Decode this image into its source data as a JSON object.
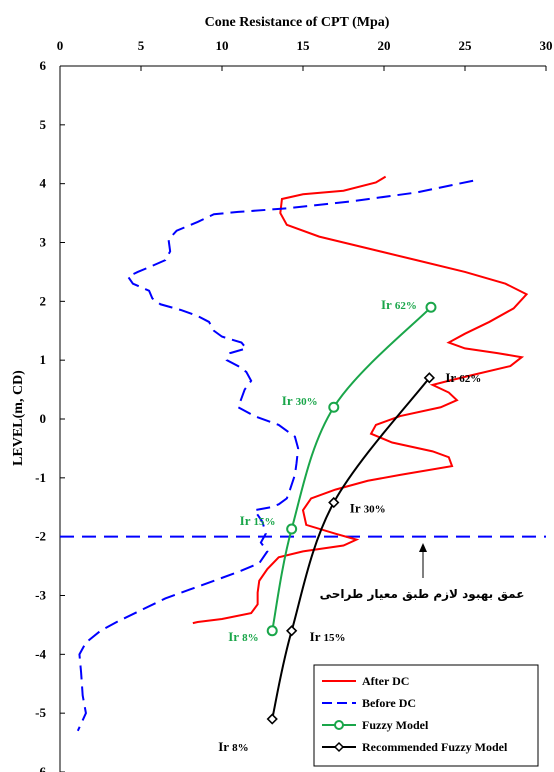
{
  "chart_data": {
    "type": "line",
    "title": "",
    "xlabel": "Cone Resistance  of CPT (Mpa)",
    "ylabel": "LEVEL(m, CD)",
    "xlim": [
      0,
      30
    ],
    "ylim": [
      -6,
      6
    ],
    "x_ticks": [
      "0",
      "5",
      "10",
      "15",
      "20",
      "25",
      "30"
    ],
    "y_ticks": [
      "6",
      "5",
      "4",
      "3",
      "2",
      "1",
      "0",
      "-1",
      "-2",
      "-3",
      "-4",
      "-5",
      "-6"
    ],
    "x_axis_position": "top",
    "grid": false,
    "legend_position": "bottom-right",
    "series": [
      {
        "name": "After DC",
        "color": "#ff0000",
        "style": "solid",
        "points": [
          [
            20.1,
            4.12
          ],
          [
            19.5,
            4.02
          ],
          [
            17.5,
            3.88
          ],
          [
            15.0,
            3.82
          ],
          [
            13.7,
            3.74
          ],
          [
            13.6,
            3.5
          ],
          [
            14.0,
            3.3
          ],
          [
            16.0,
            3.1
          ],
          [
            19.0,
            2.9
          ],
          [
            22.0,
            2.7
          ],
          [
            25.0,
            2.5
          ],
          [
            27.5,
            2.3
          ],
          [
            28.8,
            2.12
          ],
          [
            28.0,
            1.88
          ],
          [
            26.5,
            1.65
          ],
          [
            25.0,
            1.45
          ],
          [
            24.0,
            1.3
          ],
          [
            25.0,
            1.2
          ],
          [
            27.0,
            1.12
          ],
          [
            28.5,
            1.05
          ],
          [
            27.8,
            0.9
          ],
          [
            25.5,
            0.75
          ],
          [
            24.0,
            0.65
          ],
          [
            23.0,
            0.58
          ],
          [
            24.0,
            0.45
          ],
          [
            24.5,
            0.32
          ],
          [
            23.5,
            0.2
          ],
          [
            21.0,
            0.05
          ],
          [
            19.5,
            -0.1
          ],
          [
            19.2,
            -0.25
          ],
          [
            20.5,
            -0.4
          ],
          [
            23.0,
            -0.55
          ],
          [
            24.0,
            -0.65
          ],
          [
            24.2,
            -0.8
          ],
          [
            21.0,
            -0.95
          ],
          [
            19.0,
            -1.05
          ],
          [
            17.0,
            -1.2
          ],
          [
            15.5,
            -1.35
          ],
          [
            15.0,
            -1.55
          ],
          [
            15.2,
            -1.8
          ],
          [
            17.0,
            -1.95
          ],
          [
            18.3,
            -2.05
          ],
          [
            17.5,
            -2.15
          ],
          [
            15.0,
            -2.25
          ],
          [
            13.5,
            -2.35
          ],
          [
            12.8,
            -2.55
          ],
          [
            12.3,
            -2.75
          ],
          [
            12.2,
            -2.95
          ],
          [
            12.2,
            -3.15
          ],
          [
            11.8,
            -3.3
          ],
          [
            10.0,
            -3.4
          ],
          [
            8.5,
            -3.45
          ],
          [
            8.2,
            -3.47
          ]
        ]
      },
      {
        "name": "Before DC",
        "color": "#0000ff",
        "style": "dashed",
        "points": [
          [
            25.5,
            4.05
          ],
          [
            22.0,
            3.85
          ],
          [
            18.0,
            3.7
          ],
          [
            14.0,
            3.58
          ],
          [
            11.0,
            3.52
          ],
          [
            9.5,
            3.48
          ],
          [
            8.5,
            3.35
          ],
          [
            7.2,
            3.2
          ],
          [
            6.7,
            3.05
          ],
          [
            6.8,
            2.85
          ],
          [
            6.5,
            2.7
          ],
          [
            5.5,
            2.58
          ],
          [
            4.8,
            2.5
          ],
          [
            4.2,
            2.42
          ],
          [
            4.5,
            2.3
          ],
          [
            5.5,
            2.18
          ],
          [
            5.7,
            2.05
          ],
          [
            6.2,
            1.95
          ],
          [
            7.5,
            1.85
          ],
          [
            8.5,
            1.75
          ],
          [
            9.2,
            1.65
          ],
          [
            9.5,
            1.5
          ],
          [
            10.0,
            1.4
          ],
          [
            11.2,
            1.3
          ],
          [
            11.5,
            1.2
          ],
          [
            10.5,
            1.12
          ],
          [
            10.3,
            1.0
          ],
          [
            11.0,
            0.9
          ],
          [
            11.5,
            0.8
          ],
          [
            11.8,
            0.65
          ],
          [
            11.4,
            0.5
          ],
          [
            11.2,
            0.35
          ],
          [
            11.0,
            0.2
          ],
          [
            12.0,
            0.05
          ],
          [
            13.5,
            -0.1
          ],
          [
            14.5,
            -0.3
          ],
          [
            14.7,
            -0.5
          ],
          [
            14.6,
            -0.75
          ],
          [
            14.5,
            -0.95
          ],
          [
            14.2,
            -1.2
          ],
          [
            14.0,
            -1.35
          ],
          [
            13.5,
            -1.45
          ],
          [
            13.0,
            -1.5
          ],
          [
            12.0,
            -1.55
          ],
          [
            12.5,
            -1.75
          ],
          [
            12.7,
            -1.95
          ],
          [
            12.4,
            -2.1
          ],
          [
            12.8,
            -2.25
          ],
          [
            12.3,
            -2.45
          ],
          [
            11.0,
            -2.6
          ],
          [
            9.5,
            -2.75
          ],
          [
            8.0,
            -2.9
          ],
          [
            6.5,
            -3.05
          ],
          [
            5.0,
            -3.25
          ],
          [
            3.5,
            -3.45
          ],
          [
            2.5,
            -3.6
          ],
          [
            1.6,
            -3.8
          ],
          [
            1.2,
            -4.0
          ],
          [
            1.3,
            -4.3
          ],
          [
            1.4,
            -4.7
          ],
          [
            1.6,
            -5.0
          ],
          [
            1.1,
            -5.3
          ]
        ]
      },
      {
        "name": "Fuzzy Model",
        "color": "#1aa64a",
        "style": "solid-markers",
        "marker": "circle",
        "smooth": true,
        "points": [
          [
            22.9,
            1.9
          ],
          [
            16.9,
            0.2
          ],
          [
            14.3,
            -1.87
          ],
          [
            13.1,
            -3.6
          ]
        ],
        "point_labels": [
          "Ir 62%",
          "Ir 30%",
          "Ir 15%",
          "Ir 8%"
        ]
      },
      {
        "name": "Recommended Fuzzy Model",
        "color": "#000000",
        "style": "solid-markers",
        "marker": "diamond",
        "smooth": true,
        "points": [
          [
            22.8,
            0.7
          ],
          [
            16.9,
            -1.42
          ],
          [
            14.3,
            -3.6
          ],
          [
            13.1,
            -5.1
          ]
        ],
        "point_labels": [
          "Ir 62%",
          "Ir 30%",
          "Ir 15%",
          "Ir 8%"
        ]
      }
    ],
    "reference_lines": [
      {
        "type": "horizontal",
        "y": -2,
        "color": "#0000ff",
        "style": "dashed"
      }
    ],
    "annotations": [
      {
        "text": "عمق بهبود لازم طبق معیار طراحی",
        "x": 22.9,
        "y": -3.2,
        "arrow_to_y": -2.0
      }
    ]
  }
}
